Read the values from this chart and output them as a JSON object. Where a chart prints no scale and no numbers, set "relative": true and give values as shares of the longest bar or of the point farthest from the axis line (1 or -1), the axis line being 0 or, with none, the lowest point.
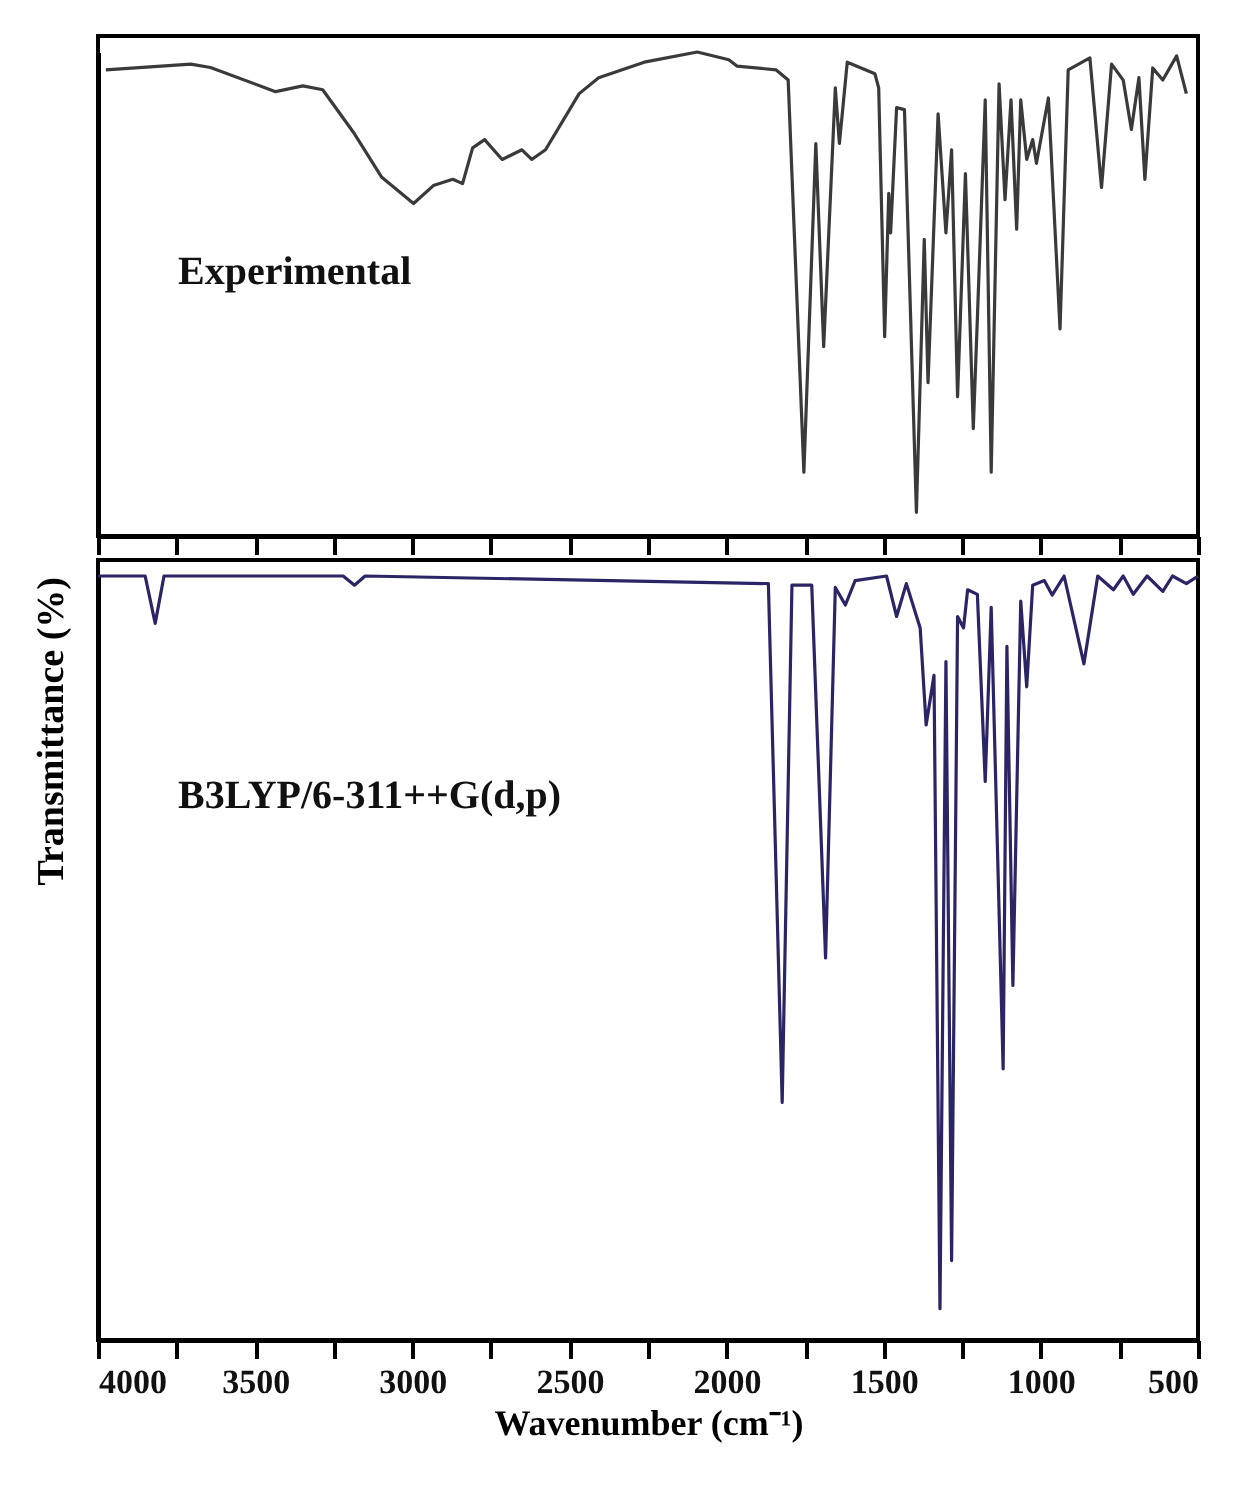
{
  "chart_data": [
    {
      "type": "line",
      "relative": true,
      "tick_labels": false,
      "annotations": [
        "Experimental"
      ],
      "xlim": [
        4000,
        500
      ],
      "xticks": [
        4000,
        {
          "value": 3750,
          "label": null
        },
        3500,
        {
          "value": 3250,
          "label": null
        },
        3000,
        {
          "value": 2750,
          "label": null
        },
        2500,
        {
          "value": 2250,
          "label": null
        },
        2000,
        {
          "value": 1750,
          "label": null
        },
        1500,
        {
          "value": 1250,
          "label": null
        },
        1000,
        {
          "value": 750,
          "label": null
        },
        500
      ],
      "series": [
        {
          "color": "#3a3a3a",
          "x": [
            3975,
            3705,
            3642,
            3435,
            3348,
            3285,
            3184,
            3097,
            2996,
            2933,
            2871,
            2840,
            2808,
            2770,
            2714,
            2651,
            2620,
            2576,
            2469,
            2407,
            2262,
            2093,
            1993,
            1967,
            1842,
            1804,
            1754,
            1716,
            1691,
            1654,
            1641,
            1616,
            1528,
            1516,
            1497,
            1484,
            1478,
            1459,
            1434,
            1396,
            1371,
            1359,
            1327,
            1302,
            1284,
            1265,
            1240,
            1215,
            1202,
            1177,
            1158,
            1133,
            1114,
            1095,
            1077,
            1064,
            1045,
            1026,
            1014,
            976,
            939,
            913,
            844,
            807,
            775,
            738,
            712,
            688,
            669,
            644,
            612,
            568,
            537
          ],
          "values": [
            0.963,
            0.975,
            0.968,
            0.918,
            0.93,
            0.922,
            0.831,
            0.741,
            0.687,
            0.724,
            0.737,
            0.728,
            0.802,
            0.819,
            0.778,
            0.798,
            0.778,
            0.798,
            0.914,
            0.947,
            0.979,
            1.0,
            0.984,
            0.971,
            0.963,
            0.942,
            0.132,
            0.811,
            0.391,
            0.926,
            0.811,
            0.979,
            0.955,
            0.926,
            0.412,
            0.708,
            0.626,
            0.885,
            0.881,
            0.049,
            0.613,
            0.317,
            0.872,
            0.626,
            0.798,
            0.288,
            0.749,
            0.222,
            0.449,
            0.901,
            0.132,
            0.934,
            0.695,
            0.901,
            0.634,
            0.901,
            0.778,
            0.819,
            0.77,
            0.905,
            0.428,
            0.963,
            0.988,
            0.72,
            0.975,
            0.942,
            0.84,
            0.947,
            0.737,
            0.967,
            0.942,
            0.992,
            0.914
          ]
        }
      ]
    },
    {
      "type": "line",
      "relative": true,
      "tick_labels": "x",
      "xlabel": "Wavenumber (cm⁻¹)",
      "ylabel": "Transmittance (%)",
      "annotations": [
        "B3LYP/6-311++G(d,p)"
      ],
      "xlim": [
        4000,
        500
      ],
      "xticks": [
        4000,
        {
          "value": 3750,
          "label": null
        },
        3500,
        {
          "value": 3250,
          "label": null
        },
        3000,
        {
          "value": 2750,
          "label": null
        },
        2500,
        {
          "value": 2250,
          "label": null
        },
        2000,
        {
          "value": 1750,
          "label": null
        },
        1500,
        {
          "value": 1250,
          "label": null
        },
        1000,
        {
          "value": 750,
          "label": null
        },
        500
      ],
      "series": [
        {
          "color": "#2b2566",
          "x": [
            4000,
            3850,
            3818,
            3790,
            3220,
            3184,
            3150,
            1867,
            1823,
            1792,
            1729,
            1685,
            1654,
            1622,
            1591,
            1491,
            1459,
            1428,
            1384,
            1365,
            1340,
            1321,
            1302,
            1284,
            1265,
            1246,
            1233,
            1202,
            1177,
            1158,
            1120,
            1108,
            1089,
            1064,
            1045,
            1026,
            989,
            964,
            926,
            863,
            819,
            769,
            738,
            706,
            662,
            612,
            581,
            537,
            500
          ],
          "values": [
            1.0,
            1.0,
            0.938,
            1.0,
            1.0,
            0.988,
            1.0,
            0.99,
            0.311,
            0.988,
            0.988,
            0.5,
            0.985,
            0.962,
            0.994,
            1.0,
            0.947,
            0.99,
            0.932,
            0.805,
            0.87,
            0.041,
            0.888,
            0.104,
            0.947,
            0.932,
            0.982,
            0.976,
            0.731,
            0.959,
            0.355,
            0.908,
            0.464,
            0.967,
            0.855,
            0.988,
            0.994,
            0.975,
            1.0,
            0.885,
            1.0,
            0.982,
            1.0,
            0.976,
            1.0,
            0.98,
            1.0,
            0.99,
            1.0
          ]
        }
      ]
    }
  ]
}
